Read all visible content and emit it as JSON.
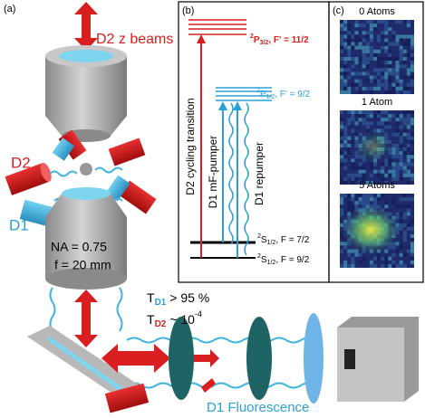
{
  "panel_a": {
    "label": "(a)",
    "beam_label": "D2 z beams",
    "d2_label": "D2",
    "d1_label": "D1",
    "na": "NA = 0.75",
    "focal": "f = 20 mm",
    "t_d1": {
      "t": "T",
      "sub": "D1",
      "rest": " > 95 %"
    },
    "t_d2": {
      "t": "T",
      "sub": "D2",
      "rest": " ~ 10",
      "sup": "-4"
    },
    "fluorescence": "D1 Fluorescence"
  },
  "panel_b": {
    "label": "(b)",
    "levels": [
      {
        "sup": "2",
        "term": "P",
        "sub": "3/2",
        "rest": ", F' = 11/2"
      },
      {
        "sup": "2",
        "term": "P",
        "sub": "1/2",
        "rest": ", F' = 9/2"
      },
      {
        "sup": "2",
        "term": "S",
        "sub": "1/2",
        "rest": ", F = 7/2"
      },
      {
        "sup": "2",
        "term": "S",
        "sub": "1/2",
        "rest": ", F = 9/2"
      }
    ],
    "transitions": [
      "D2 cycling transition",
      "D1 mF-pumper",
      "D1 repumper"
    ]
  },
  "panel_c": {
    "label": "(c)",
    "images": [
      "0 Atoms",
      "1 Atom",
      "5 Atoms"
    ]
  }
}
